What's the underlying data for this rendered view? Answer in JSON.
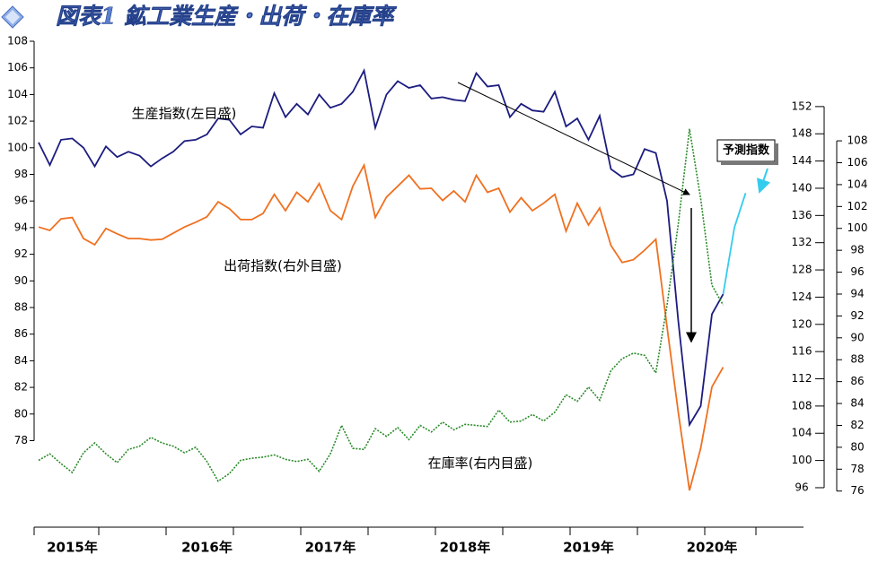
{
  "chart_data": {
    "type": "line",
    "title": "図表1 鉱工業生産・出荷・在庫率",
    "categories": [
      null,
      null,
      null,
      "2015年",
      null,
      null,
      null,
      null,
      null,
      null,
      null,
      null,
      null,
      null,
      null,
      "2016年",
      null,
      null,
      null,
      null,
      null,
      null,
      null,
      null,
      null,
      null,
      "2017年",
      null,
      null,
      null,
      null,
      null,
      null,
      null,
      null,
      null,
      null,
      null,
      "2018年",
      null,
      null,
      null,
      null,
      null,
      null,
      null,
      null,
      null,
      null,
      "2019年",
      null,
      null,
      null,
      null,
      null,
      null,
      null,
      null,
      null,
      null,
      "2020年",
      null,
      null,
      null
    ],
    "ylim": [
      71.5,
      108
    ],
    "yticks": [
      78,
      80,
      82,
      84,
      86,
      88,
      90,
      92,
      94,
      96,
      98,
      100,
      102,
      104,
      106,
      108
    ],
    "y2lim": [
      90.2,
      161.6
    ],
    "y2ticks": [
      96,
      100,
      104,
      108,
      112,
      116,
      120,
      124,
      128,
      132,
      136,
      140,
      144,
      148,
      152
    ],
    "y3lim": [
      72.7,
      117.1
    ],
    "y3ticks": [
      76,
      78,
      80,
      82,
      84,
      86,
      88,
      90,
      92,
      94,
      96,
      98,
      100,
      102,
      104,
      106,
      108
    ],
    "series": [
      {
        "name": "生産指数(左目盛)",
        "color": "#1c1c80",
        "axis": "y",
        "values": [
          100.4,
          98.7,
          100.6,
          100.7,
          100.0,
          98.6,
          100.1,
          99.3,
          99.7,
          99.4,
          98.6,
          99.2,
          99.7,
          100.5,
          100.6,
          101.0,
          102.2,
          102.1,
          101.0,
          101.6,
          101.5,
          104.1,
          102.3,
          103.3,
          102.5,
          104.0,
          103.0,
          103.3,
          104.2,
          105.8,
          101.5,
          104.0,
          105.0,
          104.5,
          104.7,
          103.7,
          103.8,
          103.6,
          103.5,
          105.6,
          104.6,
          104.7,
          102.3,
          103.3,
          102.8,
          102.7,
          104.2,
          101.6,
          102.2,
          100.6,
          102.4,
          98.4,
          97.8,
          98.0,
          99.9,
          99.6,
          96.0,
          87.0,
          79.2,
          80.6,
          87.5,
          89.0,
          null,
          null
        ]
      },
      {
        "name": "出荷指数(右外目盛)",
        "color": "#f07020",
        "axis": "y2",
        "values": [
          134.3,
          133.8,
          135.5,
          135.7,
          132.6,
          131.7,
          134.1,
          133.3,
          132.6,
          132.6,
          132.4,
          132.5,
          133.4,
          134.3,
          135.0,
          135.8,
          138.0,
          137.0,
          135.4,
          135.4,
          136.3,
          139.1,
          136.7,
          139.4,
          138.0,
          140.7,
          136.7,
          135.4,
          140.3,
          143.4,
          135.7,
          138.7,
          140.3,
          141.9,
          139.9,
          140.0,
          138.2,
          139.6,
          138.0,
          141.9,
          139.4,
          140.0,
          136.5,
          138.6,
          136.7,
          137.8,
          139.1,
          133.7,
          137.8,
          134.6,
          137.1,
          131.6,
          129.1,
          129.5,
          130.9,
          132.5,
          119.6,
          107.1,
          95.6,
          101.8,
          110.8,
          113.7,
          null,
          null
        ]
      },
      {
        "name": "在庫率(右内目盛)",
        "color": "#2a8a2a",
        "axis": "y3",
        "values": [
          78.8,
          79.4,
          78.5,
          77.7,
          79.5,
          80.4,
          79.4,
          78.6,
          79.8,
          80.1,
          80.9,
          80.4,
          80.1,
          79.5,
          80.0,
          78.7,
          76.9,
          77.6,
          78.8,
          79.0,
          79.1,
          79.3,
          78.9,
          78.7,
          78.9,
          77.8,
          79.4,
          82.0,
          79.9,
          79.8,
          81.7,
          81.0,
          81.8,
          80.7,
          82.0,
          81.4,
          82.3,
          81.6,
          82.1,
          82.0,
          81.9,
          83.4,
          82.3,
          82.4,
          83.0,
          82.4,
          83.2,
          84.8,
          84.2,
          85.5,
          84.3,
          87.0,
          88.1,
          88.6,
          88.4,
          86.8,
          93.0,
          100.4,
          109.1,
          102.7,
          94.8,
          93.0,
          null,
          null
        ]
      },
      {
        "name": "予測指数",
        "color": "#33ccee",
        "axis": "y",
        "values": [
          null,
          null,
          null,
          null,
          null,
          null,
          null,
          null,
          null,
          null,
          null,
          null,
          null,
          null,
          null,
          null,
          null,
          null,
          null,
          null,
          null,
          null,
          null,
          null,
          null,
          null,
          null,
          null,
          null,
          null,
          null,
          null,
          null,
          null,
          null,
          null,
          null,
          null,
          null,
          null,
          null,
          null,
          null,
          null,
          null,
          null,
          null,
          null,
          null,
          null,
          null,
          null,
          null,
          null,
          null,
          null,
          null,
          null,
          null,
          null,
          null,
          89.0,
          94.0,
          96.6
        ]
      }
    ]
  }
}
